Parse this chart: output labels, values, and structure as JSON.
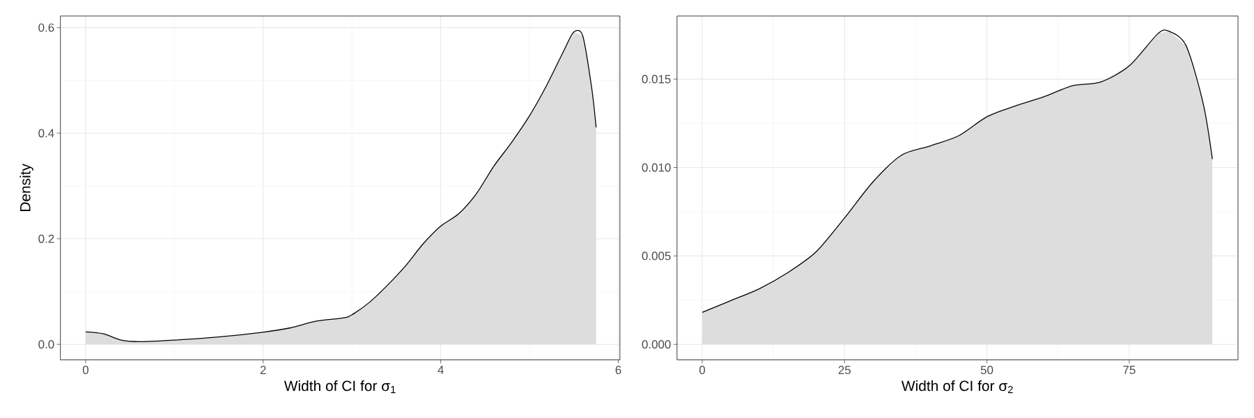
{
  "chart_data": [
    {
      "type": "area",
      "xlabel": "Width of CI for σ$_{1}$",
      "ylabel": "Density",
      "grid": true,
      "xlim": [
        -0.284,
        6.018
      ],
      "ylim": [
        -0.0295,
        0.622
      ],
      "xticks": [
        0,
        2,
        4,
        6
      ],
      "yticks": [
        {
          "value": 0,
          "label": "0.0"
        },
        {
          "value": 0.2,
          "label": "0.2"
        },
        {
          "value": 0.4,
          "label": "0.4"
        },
        {
          "value": 0.6,
          "label": "0.6"
        }
      ],
      "x": [
        0,
        0.2,
        0.4,
        0.6,
        1.0,
        1.5,
        2.0,
        2.3,
        2.6,
        2.9,
        3.0,
        3.2,
        3.4,
        3.6,
        3.8,
        4.0,
        4.2,
        4.4,
        4.6,
        4.8,
        5.0,
        5.2,
        5.4,
        5.5,
        5.6,
        5.7,
        5.75
      ],
      "series": [
        {
          "color": "#dddddd",
          "values": [
            0.0235,
            0.02,
            0.008,
            0.005,
            0.008,
            0.014,
            0.023,
            0.031,
            0.044,
            0.05,
            0.056,
            0.08,
            0.112,
            0.148,
            0.19,
            0.224,
            0.247,
            0.285,
            0.338,
            0.383,
            0.433,
            0.493,
            0.561,
            0.592,
            0.584,
            0.486,
            0.411
          ]
        }
      ]
    },
    {
      "type": "area",
      "xlabel": "Width of CI for σ$_{2}$",
      "grid": true,
      "xlim": [
        -4.42,
        94.1
      ],
      "ylim": [
        -0.00088,
        0.01857
      ],
      "xticks": [
        0,
        25,
        50,
        75
      ],
      "yticks": [
        {
          "value": 0,
          "label": "0.000"
        },
        {
          "value": 0.005,
          "label": "0.005"
        },
        {
          "value": 0.01,
          "label": "0.010"
        },
        {
          "value": 0.015,
          "label": "0.015"
        }
      ],
      "x": [
        0,
        5,
        10,
        15,
        20,
        25,
        30,
        35,
        40,
        45,
        50,
        55,
        60,
        65,
        70,
        75,
        80,
        82,
        85,
        88,
        89.6
      ],
      "series": [
        {
          "color": "#dddddd",
          "values": [
            0.00181,
            0.00247,
            0.00314,
            0.00405,
            0.00523,
            0.00715,
            0.00919,
            0.0107,
            0.01122,
            0.01179,
            0.01287,
            0.01348,
            0.014,
            0.01462,
            0.01484,
            0.01575,
            0.01756,
            0.01771,
            0.01688,
            0.0136,
            0.01048
          ]
        }
      ]
    }
  ]
}
